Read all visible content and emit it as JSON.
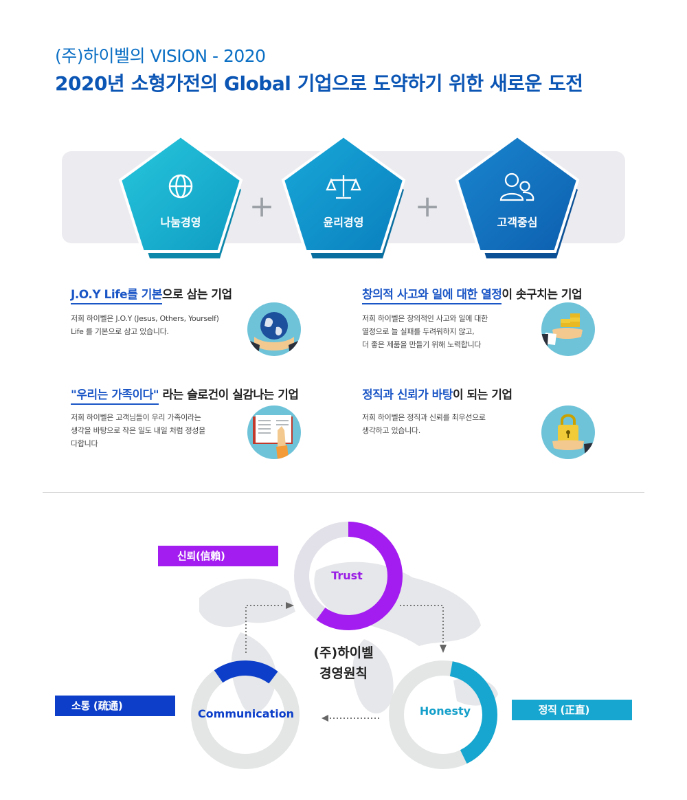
{
  "header": {
    "line1": "(주)하이벨의 VISION - 2020",
    "line2": "2020년 소형가전의 Global 기업으로 도약하기 위한 새로운 도전"
  },
  "values": {
    "items": [
      {
        "label": "나눔경영",
        "icon": "globe-icon",
        "color": "#19b3cf"
      },
      {
        "label": "윤리경영",
        "icon": "scales-icon",
        "color": "#0d92c9"
      },
      {
        "label": "고객중심",
        "icon": "users-icon",
        "color": "#1576bf"
      }
    ],
    "plus": "+"
  },
  "features": [
    {
      "title_hl": "J.O.Y Life를 기본",
      "title_rest": "으로 삼는 기업",
      "desc": [
        "저희 하이벨은 J.O.Y (Jesus, Others, Yourself)",
        "Life 를 기본으로 삼고 있습니다."
      ],
      "icon": "globe-hands-icon"
    },
    {
      "title_hl": "창의적 사고와 일에 대한 열정",
      "title_rest": "이 솟구치는 기업",
      "desc": [
        "저희 하이벨은 창의적인 사고와 일에 대한",
        "열정으로 늘 실패를 두려워하지 않고,",
        "더 좋은 제품을 만들기 위해 노력합니다"
      ],
      "icon": "coins-hand-icon"
    },
    {
      "title_hl": "\"우리는 가족이다\"",
      "title_rest": " 라는 슬로건이 실감나는 기업",
      "desc": [
        "저희 하이벨은 고객님들이 우리 가족이라는",
        "생각을 바탕으로  작은 일도 내일 처럼 정성을",
        "다합니다"
      ],
      "icon": "book-icon"
    },
    {
      "title_hl": "정직과 신뢰가 바탕",
      "title_rest": "이 되는 기업",
      "desc": [
        "저희 하이벨은 정직과 신뢰를 최우선으로",
        "생각하고 있습니다."
      ],
      "icon": "lock-hand-icon"
    }
  ],
  "principles": {
    "center_line1": "(주)하이벨",
    "center_line2": "경영원칙",
    "rings": [
      {
        "label": "Trust",
        "ribbon": "신뢰(信賴)",
        "color": "#a31cf0",
        "fill": 0.6
      },
      {
        "label": "Honesty",
        "ribbon": "정직 (正直)",
        "color": "#16a6cf",
        "fill": 0.4
      },
      {
        "label": "Communication",
        "ribbon": "소통 (疏通)",
        "color": "#0c3ec9",
        "fill": 0.2
      }
    ]
  }
}
